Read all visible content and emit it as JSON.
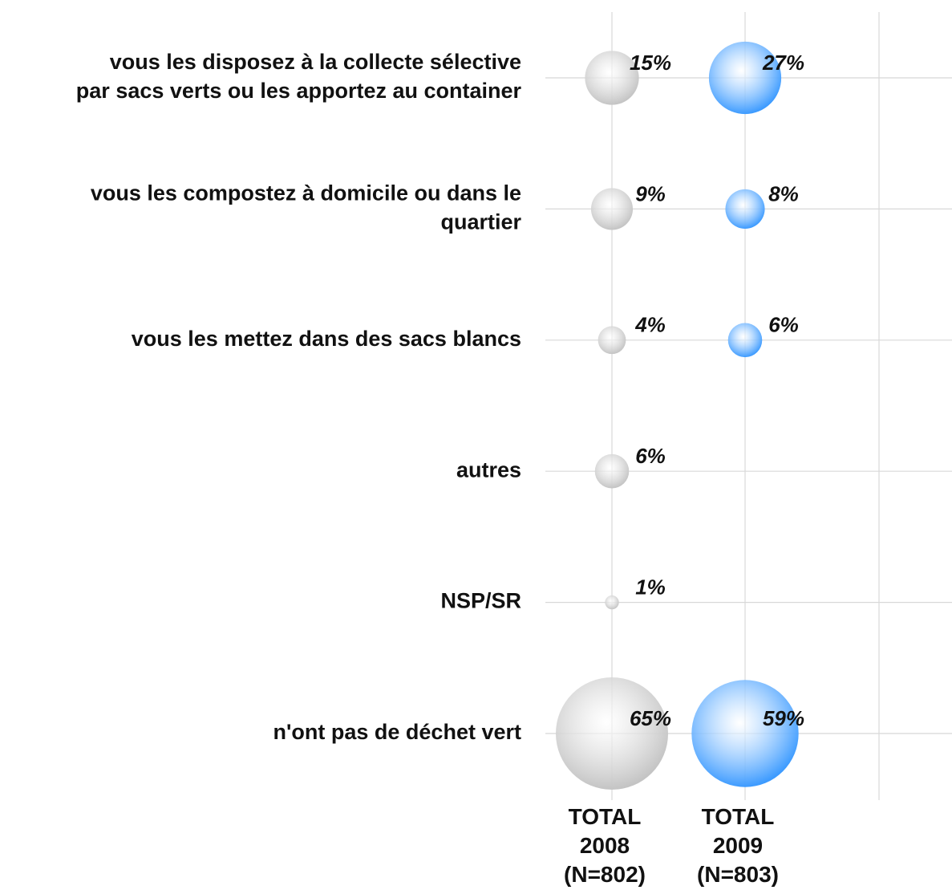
{
  "chart_data": {
    "type": "bubble",
    "categories": [
      [
        "vous les disposez à la collecte sélective",
        "par sacs verts ou les apportez au container"
      ],
      [
        "vous les compostez à domicile ou dans le",
        "quartier"
      ],
      [
        "vous les mettez dans des sacs blancs"
      ],
      [
        "autres"
      ],
      [
        "NSP/SR"
      ],
      [
        "n'ont pas de déchet vert"
      ]
    ],
    "series": [
      {
        "name": "TOTAL 2008 (N=802)",
        "color": "#c4c4c4",
        "values": [
          15,
          9,
          4,
          6,
          1,
          65
        ],
        "value_labels": [
          "15%",
          "9%",
          "4%",
          "6%",
          "1%",
          "65%"
        ]
      },
      {
        "name": "TOTAL 2009 (N=803)",
        "color": "#3d9bff",
        "values": [
          27,
          8,
          6,
          null,
          null,
          59
        ],
        "value_labels": [
          "27%",
          "8%",
          "6%",
          null,
          null,
          "59%"
        ]
      }
    ],
    "grid": true
  }
}
